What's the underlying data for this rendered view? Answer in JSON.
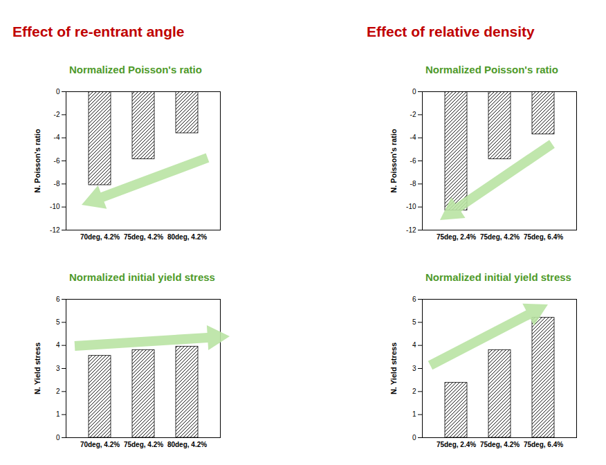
{
  "chart_data": [
    {
      "type": "bar",
      "suptitle": "Effect of re-entrant angle",
      "title": "Normalized Poisson's ratio",
      "categories": [
        "70deg, 4.2%",
        "75deg, 4.2%",
        "80deg, 4.2%"
      ],
      "values": [
        -8.1,
        -5.85,
        -3.6
      ],
      "color": "#000000",
      "y_label": "N. Poisson's ratio",
      "ylim": [
        -12,
        0
      ],
      "yticks": [
        -12,
        -10,
        -8,
        -6,
        -4,
        -2,
        0
      ],
      "grid": false
    },
    {
      "type": "bar",
      "title": "Normalized initial yield stress",
      "categories": [
        "70deg, 4.2%",
        "75deg, 4.2%",
        "80deg, 4.2%"
      ],
      "values": [
        3.55,
        3.8,
        3.95
      ],
      "color": "#000000",
      "y_label": "N. Yield stress",
      "ylim": [
        0,
        6
      ],
      "yticks": [
        0,
        1,
        2,
        3,
        4,
        5,
        6
      ],
      "grid": false
    },
    {
      "type": "bar",
      "suptitle": "Effect of relative density",
      "title": "Normalized Poisson's ratio",
      "categories": [
        "75deg, 2.4%",
        "75deg, 4.2%",
        "75deg, 6.4%"
      ],
      "values": [
        -10.3,
        -5.85,
        -3.7
      ],
      "color": "#000000",
      "y_label": "N. Poisson's ratio",
      "ylim": [
        -12,
        0
      ],
      "yticks": [
        -12,
        -10,
        -8,
        -6,
        -4,
        -2,
        0
      ],
      "grid": false
    },
    {
      "type": "bar",
      "title": "Normalized initial yield stress",
      "categories": [
        "75deg, 2.4%",
        "75deg, 4.2%",
        "75deg, 6.4%"
      ],
      "values": [
        2.38,
        3.8,
        5.2
      ],
      "color": "#000000",
      "y_label": "N. Yield stress",
      "ylim": [
        0,
        6
      ],
      "yticks": [
        0,
        1,
        2,
        3,
        4,
        5,
        6
      ],
      "grid": false
    }
  ]
}
